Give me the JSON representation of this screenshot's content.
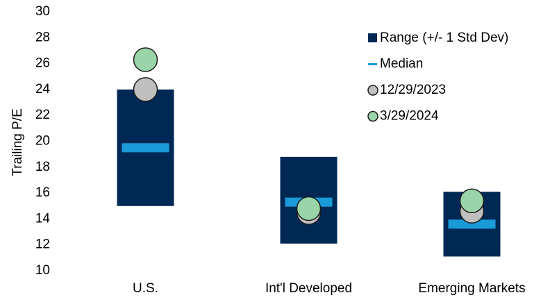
{
  "chart_data": {
    "type": "range",
    "ylabel": "Trailing  P/E",
    "categories": [
      "U.S.",
      "Int'l Developed",
      "Emerging Markets"
    ],
    "ylim": [
      10,
      30
    ],
    "yticks": [
      10,
      12,
      14,
      16,
      18,
      20,
      22,
      24,
      26,
      28,
      30
    ],
    "grid": false,
    "legend": "upper right",
    "series": [
      {
        "name": "Range (+/- 1 Std Dev)",
        "color": "#002855",
        "marker": "range",
        "low": [
          15.0,
          12.1,
          11.1
        ],
        "high": [
          24.0,
          18.8,
          16.1
        ]
      },
      {
        "name": "Median",
        "color": "#1a9ad6",
        "marker": "dash",
        "values": [
          19.5,
          15.3,
          13.6
        ]
      },
      {
        "name": "12/29/2023",
        "color": "#bfbfbf",
        "marker": "circle",
        "values": [
          24.0,
          14.5,
          14.6
        ]
      },
      {
        "name": "3/29/2024",
        "color": "#99d5a8",
        "marker": "circle",
        "values": [
          26.3,
          14.8,
          15.4
        ]
      }
    ]
  }
}
